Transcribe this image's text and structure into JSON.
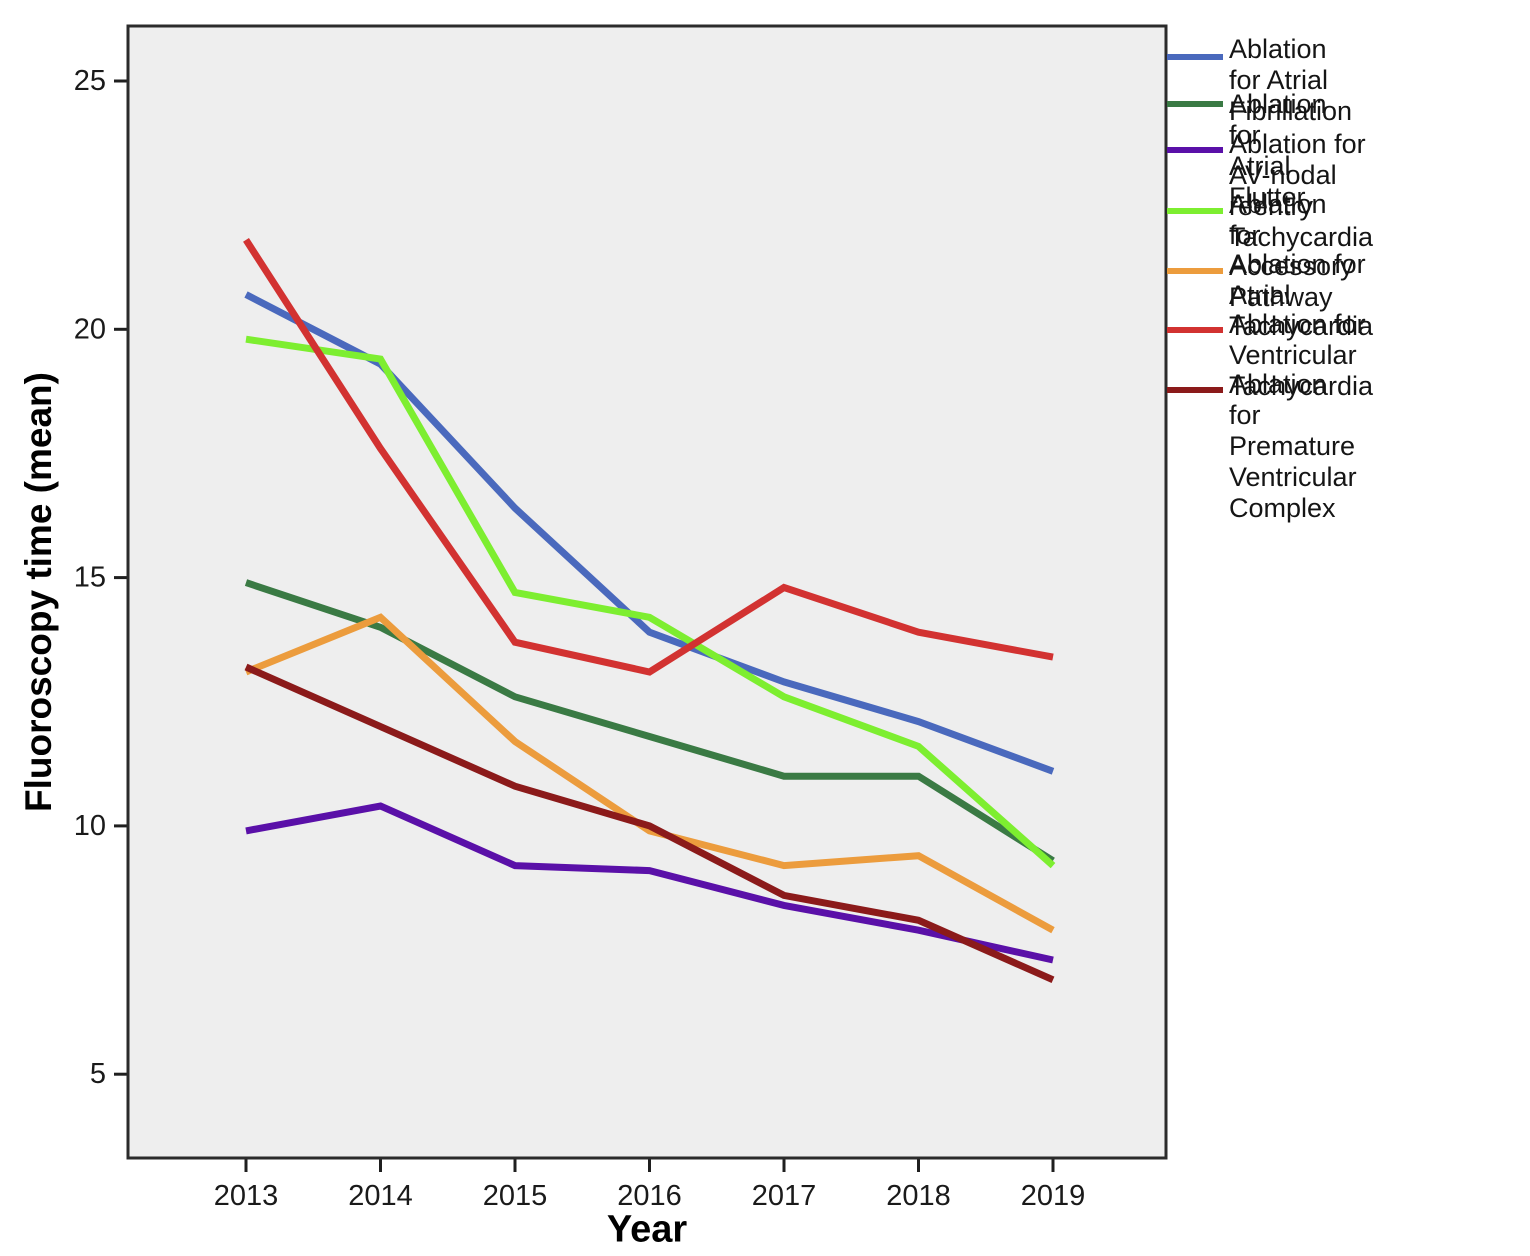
{
  "chart_data": {
    "type": "line",
    "title": "",
    "xlabel": "Year",
    "ylabel": "Fluoroscopy time (mean)",
    "categories": [
      "2013",
      "2014",
      "2015",
      "2016",
      "2017",
      "2018",
      "2019"
    ],
    "y_ticks": [
      5,
      10,
      15,
      20,
      25
    ],
    "ylim": [
      3.3,
      26.1
    ],
    "grid": false,
    "legend_position": "right",
    "plot_background": "#EEEEEE",
    "frame_color": "#2B2B2B",
    "tick_color": "#1F1F1F",
    "tick_label_color": "#1A1A1A",
    "series": [
      {
        "name": "Ablation for Atrial Fibrillation",
        "legend_lines": [
          "Ablation for Atrial",
          "Fibrillation"
        ],
        "color": "#4A69BD",
        "values": [
          20.7,
          19.3,
          16.4,
          13.9,
          12.9,
          12.1,
          11.1
        ]
      },
      {
        "name": "Ablation for Atrial Flutter",
        "legend_lines": [
          "Ablation for Atrial Flutter"
        ],
        "color": "#3A7A44",
        "values": [
          14.9,
          14.0,
          12.6,
          11.8,
          11.0,
          11.0,
          9.3
        ]
      },
      {
        "name": "Ablation for AV-nodal reentry Tachycardia",
        "legend_lines": [
          "Ablation for AV-nodal",
          "reentry Tachycardia"
        ],
        "color": "#5A10A8",
        "values": [
          9.9,
          10.4,
          9.2,
          9.1,
          8.4,
          7.9,
          7.3
        ]
      },
      {
        "name": "Ablation for Accessory Pathway",
        "legend_lines": [
          "Ablation for Accessory",
          "Pathway"
        ],
        "color": "#7DEE30",
        "values": [
          19.8,
          19.4,
          14.7,
          14.2,
          12.6,
          11.6,
          9.2
        ]
      },
      {
        "name": "Ablation for Atrial Tachycardia",
        "legend_lines": [
          "Ablation for Atrial",
          "Tachycardia"
        ],
        "color": "#EC9C3D",
        "values": [
          13.1,
          14.2,
          11.7,
          9.9,
          9.2,
          9.4,
          7.9
        ]
      },
      {
        "name": "Ablation for Ventricular Tachycardia",
        "legend_lines": [
          "Ablation for Ventricular",
          "Tachycardia"
        ],
        "color": "#D23231",
        "values": [
          21.8,
          17.6,
          13.7,
          13.1,
          14.8,
          13.9,
          13.4
        ]
      },
      {
        "name": "Ablation for Premature Ventricular Complex",
        "legend_lines": [
          "Ablation for Premature",
          "Ventricular Complex"
        ],
        "color": "#8B1A1A",
        "values": [
          13.2,
          12.0,
          10.8,
          10.0,
          8.6,
          8.1,
          6.9
        ]
      }
    ]
  }
}
